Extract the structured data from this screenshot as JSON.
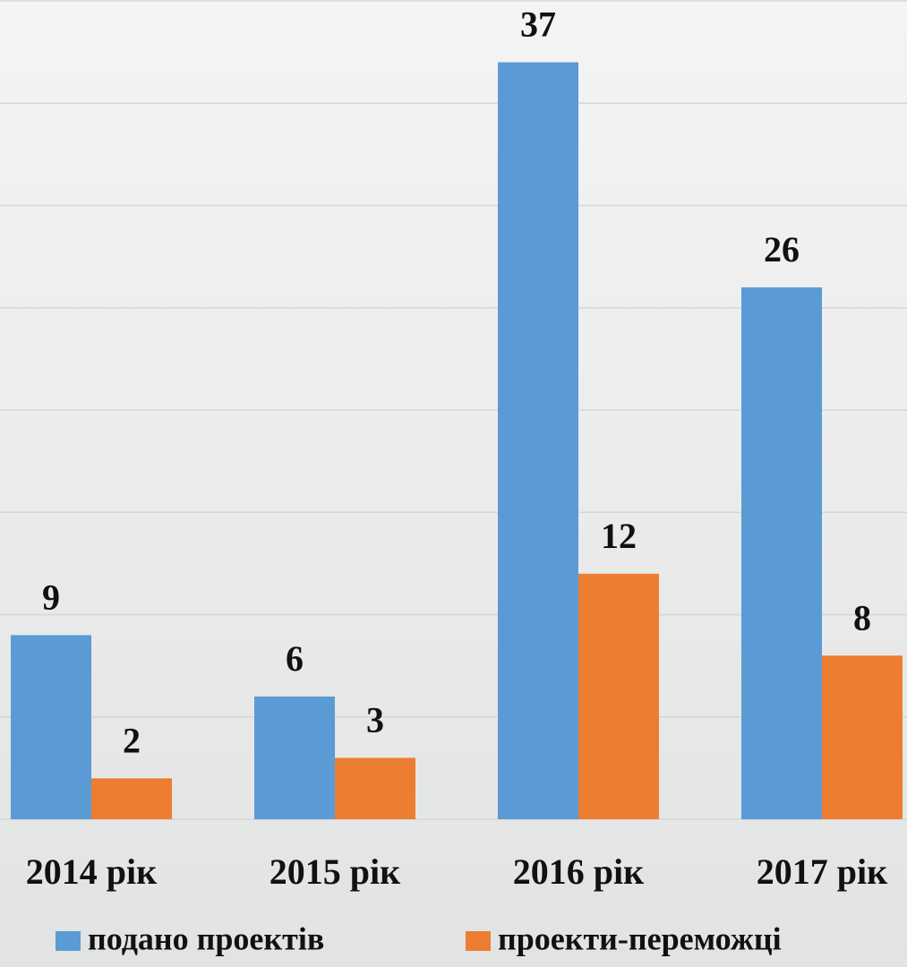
{
  "chart_data": {
    "type": "bar",
    "categories": [
      "2014 рік",
      "2015 рік",
      "2016 рік",
      "2017 рік"
    ],
    "series": [
      {
        "name": "подано проектів",
        "color": "#5b9bd5",
        "values": [
          9,
          6,
          37,
          26
        ]
      },
      {
        "name": "проекти-переможці",
        "color": "#ed7d31",
        "values": [
          2,
          3,
          12,
          8
        ]
      }
    ],
    "ylim": [
      0,
      40
    ],
    "yticks": [
      0,
      5,
      10,
      15,
      20,
      25,
      30,
      35,
      40
    ],
    "grid": true,
    "legend": "bottom"
  }
}
